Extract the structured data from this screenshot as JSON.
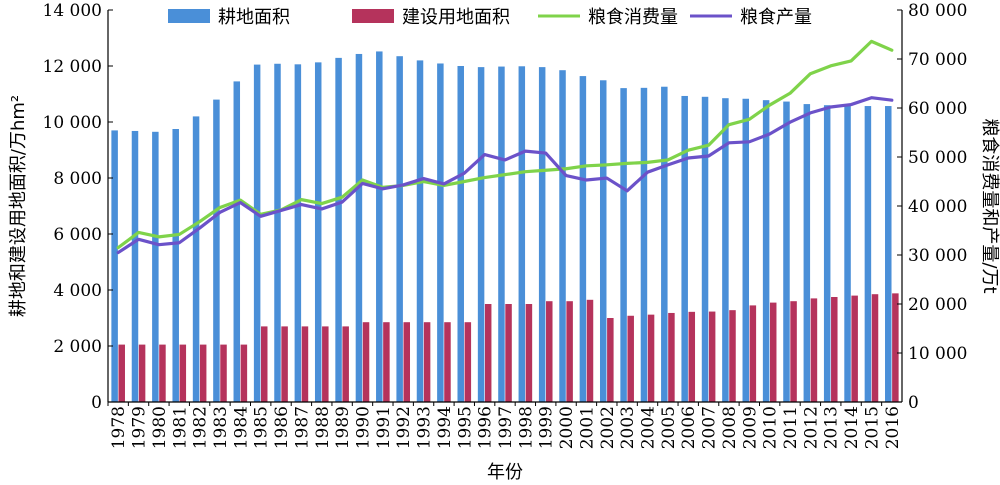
{
  "chart_data": {
    "type": "bar",
    "xlabel": "年份",
    "ylabel_left": "耕地和建设用地面积/万hm²",
    "ylabel_right": "粮食消费量和产量/万t",
    "ylim_left": [
      0,
      14000
    ],
    "ylim_right": [
      0,
      80000
    ],
    "yticks_left": [
      0,
      2000,
      4000,
      6000,
      8000,
      10000,
      12000,
      14000
    ],
    "yticks_left_labels": [
      "0",
      "2 000",
      "4 000",
      "6 000",
      "8 000",
      "10 000",
      "12 000",
      "14 000"
    ],
    "yticks_right": [
      0,
      10000,
      20000,
      30000,
      40000,
      50000,
      60000,
      70000,
      80000
    ],
    "yticks_right_labels": [
      "0",
      "10 000",
      "20 000",
      "30 000",
      "40 000",
      "50 000",
      "60 000",
      "70 000",
      "80 000"
    ],
    "categories": [
      "1978",
      "1979",
      "1980",
      "1981",
      "1982",
      "1983",
      "1984",
      "1985",
      "1986",
      "1987",
      "1988",
      "1989",
      "1990",
      "1991",
      "1992",
      "1993",
      "1994",
      "1995",
      "1996",
      "1997",
      "1998",
      "1999",
      "2000",
      "2001",
      "2002",
      "2003",
      "2004",
      "2005",
      "2006",
      "2007",
      "2008",
      "2009",
      "2010",
      "2011",
      "2012",
      "2013",
      "2014",
      "2015",
      "2016"
    ],
    "legend_position": "top",
    "series": [
      {
        "name": "耕地面积",
        "kind": "bar",
        "axis": "left",
        "color": "#4a8fd8",
        "values": [
          9700,
          9680,
          9650,
          9750,
          10200,
          10800,
          11450,
          12050,
          12080,
          12060,
          12130,
          12290,
          12430,
          12520,
          12350,
          12200,
          12090,
          12000,
          11960,
          11980,
          11990,
          11960,
          11850,
          11640,
          11490,
          11210,
          11220,
          11260,
          10930,
          10900,
          10850,
          10830,
          10780,
          10730,
          10640,
          10600,
          10600,
          10570,
          10570
        ]
      },
      {
        "name": "建设用地面积",
        "kind": "bar",
        "axis": "left",
        "color": "#b5335c",
        "values": [
          2050,
          2050,
          2050,
          2050,
          2050,
          2050,
          2050,
          2700,
          2700,
          2700,
          2700,
          2700,
          2850,
          2850,
          2850,
          2850,
          2850,
          2850,
          3500,
          3500,
          3500,
          3600,
          3600,
          3650,
          3000,
          3080,
          3120,
          3180,
          3220,
          3230,
          3280,
          3450,
          3550,
          3600,
          3700,
          3750,
          3800,
          3850,
          3880
        ]
      },
      {
        "name": "粮食消费量",
        "kind": "line",
        "axis": "right",
        "color": "#7fd34a",
        "values": [
          31500,
          34600,
          33700,
          34200,
          36800,
          39700,
          41200,
          38300,
          39200,
          41300,
          40500,
          41800,
          45300,
          43800,
          44200,
          45000,
          44200,
          45000,
          45800,
          46400,
          47000,
          47300,
          47600,
          48200,
          48400,
          48700,
          48900,
          49400,
          51400,
          52400,
          56600,
          57700,
          60600,
          63000,
          67000,
          68600,
          69600,
          73600,
          71800
        ]
      },
      {
        "name": "粮食产量",
        "kind": "line",
        "axis": "right",
        "color": "#6b52c9",
        "values": [
          30500,
          33200,
          32100,
          32500,
          35500,
          38700,
          40700,
          37900,
          39100,
          40300,
          39400,
          40800,
          44600,
          43500,
          44300,
          45600,
          44500,
          46700,
          50500,
          49400,
          51200,
          50800,
          46200,
          45300,
          45700,
          43100,
          46900,
          48400,
          49800,
          50200,
          52900,
          53100,
          54700,
          57100,
          59000,
          60200,
          60700,
          62100,
          61600
        ]
      }
    ]
  }
}
